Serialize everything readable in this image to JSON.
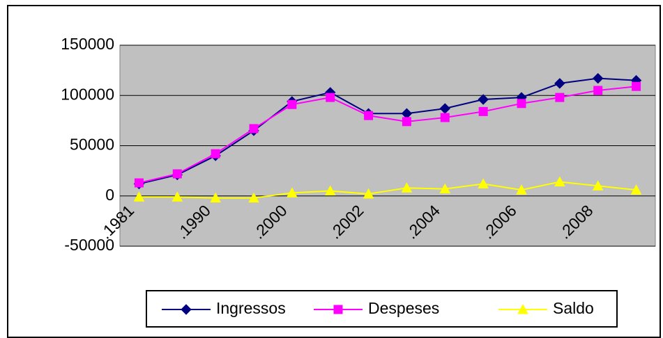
{
  "chart_data": {
    "type": "line",
    "categories": [
      ".1981",
      null,
      ".1990",
      null,
      ".2000",
      null,
      ".2002",
      null,
      ".2004",
      null,
      ".2006",
      null,
      ".2008",
      null
    ],
    "series": [
      {
        "name": "Ingressos",
        "color": "#000080",
        "marker": "diamond",
        "values": [
          12000,
          21000,
          40000,
          65000,
          94000,
          103000,
          82000,
          82000,
          87000,
          96000,
          98000,
          112000,
          117000,
          115000
        ]
      },
      {
        "name": "Despeses",
        "color": "#ff00ff",
        "marker": "square",
        "values": [
          13000,
          22000,
          42000,
          67000,
          91000,
          98000,
          80000,
          74000,
          78000,
          84000,
          92000,
          98000,
          105000,
          109000
        ]
      },
      {
        "name": "Saldo",
        "color": "#ffff00",
        "marker": "triangle",
        "values": [
          -1000,
          -1000,
          -2000,
          -2000,
          3000,
          5000,
          2000,
          8000,
          7000,
          12000,
          6000,
          14000,
          10000,
          6000
        ]
      }
    ],
    "ylim": [
      -50000,
      150000
    ],
    "yticks": [
      -50000,
      0,
      50000,
      100000,
      150000
    ],
    "grid": true,
    "legend": "bottom"
  }
}
